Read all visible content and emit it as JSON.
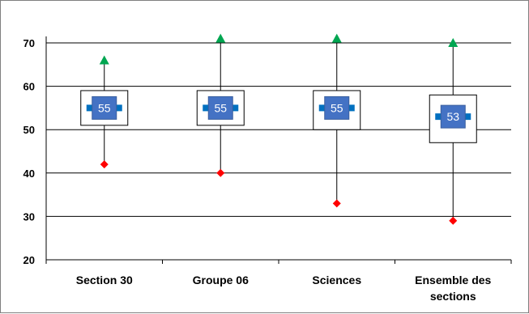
{
  "chart_data": {
    "type": "boxplot",
    "categories": [
      "Section 30",
      "Groupe 06",
      "Sciences",
      "Ensemble des sections"
    ],
    "category_lines": [
      [
        "Section 30"
      ],
      [
        "Groupe 06"
      ],
      [
        "Sciences"
      ],
      [
        "Ensemble des",
        "sections"
      ]
    ],
    "max": [
      66,
      71,
      71,
      70
    ],
    "q3": [
      59,
      59,
      59,
      58
    ],
    "median": [
      55,
      55,
      55,
      53
    ],
    "q1": [
      51,
      51,
      50,
      47
    ],
    "min": [
      42,
      40,
      33,
      29
    ],
    "median_labels": [
      "55",
      "55",
      "55",
      "53"
    ],
    "ylim": [
      20,
      70
    ],
    "yticks": [
      "20",
      "30",
      "40",
      "50",
      "60",
      "70"
    ],
    "grid": true,
    "colors": {
      "max_marker": "#00a651",
      "min_marker": "#ff0000",
      "median_box": "#4472c4",
      "median_bar": "#0070c0",
      "grid": "#000000"
    }
  }
}
